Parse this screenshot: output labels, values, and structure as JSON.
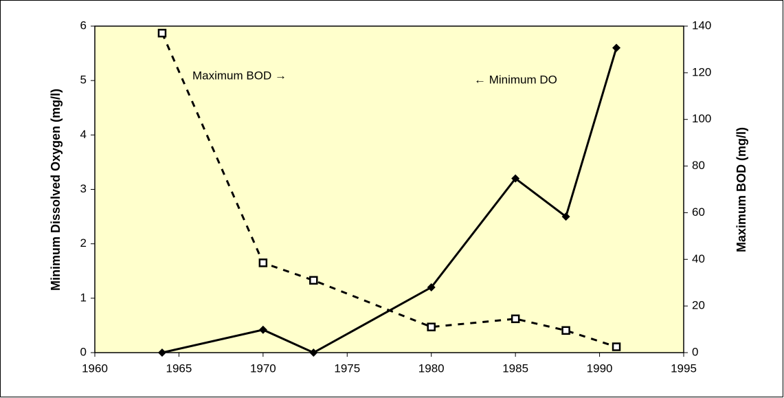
{
  "chart_data": {
    "type": "line",
    "x": [
      1964,
      1970,
      1973,
      1980,
      1985,
      1988,
      1991
    ],
    "series": [
      {
        "name": "Minimum DO",
        "color": "#000000",
        "values": [
          0,
          0.42,
          0,
          1.2,
          3.2,
          2.5,
          5.6
        ],
        "marker": "diamond",
        "dash": false
      },
      {
        "name": "Maximum BOD",
        "color": "#000000",
        "axis": "y2",
        "values": [
          137,
          38.5,
          31,
          11,
          14.5,
          9.5,
          2.5
        ],
        "marker": "square",
        "dash": true
      }
    ],
    "annotations": [
      "Maximum BOD →",
      "← Minimum DO"
    ],
    "ylabel": "Minimum Dissolved Oxygen (mg/l)",
    "y2label": "Maximum BOD (mg/l)",
    "xlim": [
      1960,
      1995
    ],
    "xticks": [
      1960,
      1965,
      1970,
      1975,
      1980,
      1985,
      1990,
      1995
    ],
    "ylim": [
      0,
      6
    ],
    "yticks": [
      0,
      1,
      2,
      3,
      4,
      5,
      6
    ],
    "y2lim": [
      0,
      140
    ],
    "y2ticks": [
      0,
      20,
      40,
      60,
      80,
      100,
      120,
      140
    ],
    "plot_background": "#ffffcc"
  }
}
